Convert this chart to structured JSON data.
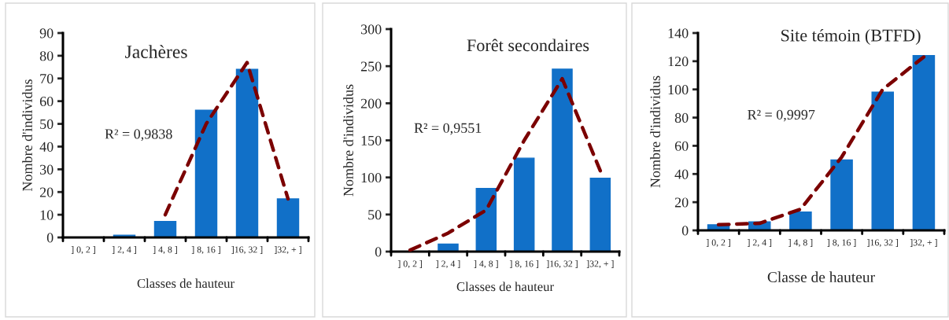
{
  "chart_data": [
    {
      "type": "bar",
      "title": "Jachères",
      "xlabel": "Classes de hauteur",
      "ylabel": "Nombre d'individus",
      "categories": [
        "] 0, 2 ]",
        "] 2, 4 ]",
        "] 4, 8 ]",
        "] 8, 16 ]",
        "]16, 32 ]",
        "]32, + ]"
      ],
      "ylim": [
        0,
        90
      ],
      "yticks": [
        0,
        10,
        20,
        30,
        40,
        50,
        60,
        70,
        80,
        90
      ],
      "grid": false,
      "legend": false,
      "annotations": [
        "R² = 0,9838"
      ],
      "series": [
        {
          "color": "#1170c8",
          "values": [
            0,
            1,
            7,
            56,
            74,
            17
          ]
        },
        {
          "type": "line",
          "color": "#7b0000",
          "line_style": "dashed",
          "values": [
            null,
            null,
            10,
            50,
            77,
            17
          ]
        }
      ]
    },
    {
      "type": "bar",
      "title": "Forêt secondaires",
      "xlabel": "Classes de hauteur",
      "ylabel": "Nombre d'individus",
      "categories": [
        "] 0, 2 ]",
        "] 2, 4 ]",
        "] 4, 8 ]",
        "] 8, 16 ]",
        "]16, 32 ]",
        "]32, + ]"
      ],
      "ylim": [
        0,
        300
      ],
      "yticks": [
        0,
        50,
        100,
        150,
        200,
        250,
        300
      ],
      "grid": false,
      "legend": false,
      "annotations": [
        "R² = 0,9551"
      ],
      "series": [
        {
          "color": "#1170c8",
          "values": [
            0,
            10,
            85,
            126,
            246,
            99
          ]
        },
        {
          "type": "line",
          "color": "#7b0000",
          "line_style": "dashed",
          "values": [
            2,
            25,
            56,
            150,
            233,
            109
          ]
        }
      ]
    },
    {
      "type": "bar",
      "title": "Site témoin (BTFD)",
      "xlabel": "Classe de hauteur",
      "ylabel": "Nombre d'individus",
      "categories": [
        "] 0, 2 ]",
        "] 2, 4 ]",
        "] 4, 8 ]",
        "] 8, 16 ]",
        "]16, 32 ]",
        "]32, + ]"
      ],
      "ylim": [
        0,
        140
      ],
      "yticks": [
        0,
        20,
        40,
        60,
        80,
        100,
        120,
        140
      ],
      "grid": false,
      "legend": false,
      "annotations": [
        "R² = 0,9997"
      ],
      "series": [
        {
          "color": "#1170c8",
          "values": [
            4,
            6,
            13,
            50,
            98,
            124
          ]
        },
        {
          "type": "line",
          "color": "#7b0000",
          "line_style": "dashed",
          "values": [
            4,
            5,
            15,
            52,
            100,
            123
          ]
        }
      ]
    }
  ]
}
